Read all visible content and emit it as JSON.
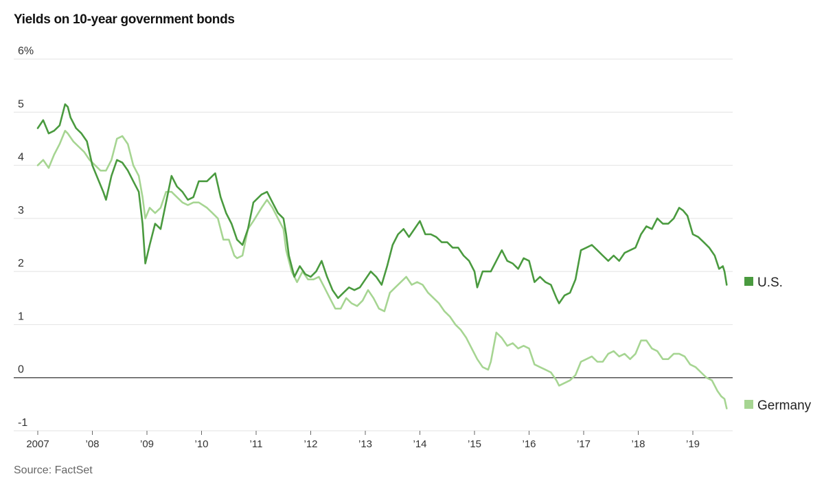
{
  "title": "Yields on 10-year government bonds",
  "source": "Source: FactSet",
  "colors": {
    "us": "#4a9a3f",
    "germany": "#a6d592",
    "grid": "#e2e2e2",
    "zero_line": "#333333"
  },
  "chart_data": {
    "type": "line",
    "title": "Yields on 10-year government bonds",
    "xlabel": "",
    "ylabel": "",
    "unit": "%",
    "ylim": [
      -1,
      6
    ],
    "xlim": [
      2007.0,
      2019.75
    ],
    "yticks": [
      {
        "value": 6,
        "label": "6%"
      },
      {
        "value": 5,
        "label": "5"
      },
      {
        "value": 4,
        "label": "4"
      },
      {
        "value": 3,
        "label": "3"
      },
      {
        "value": 2,
        "label": "2"
      },
      {
        "value": 1,
        "label": "1"
      },
      {
        "value": 0,
        "label": "0"
      },
      {
        "value": -1,
        "label": "-1"
      }
    ],
    "xticks": [
      {
        "value": 2007,
        "label": "2007"
      },
      {
        "value": 2008,
        "label": "’08"
      },
      {
        "value": 2009,
        "label": "’09"
      },
      {
        "value": 2010,
        "label": "’10"
      },
      {
        "value": 2011,
        "label": "’11"
      },
      {
        "value": 2012,
        "label": "’12"
      },
      {
        "value": 2013,
        "label": "’13"
      },
      {
        "value": 2014,
        "label": "’14"
      },
      {
        "value": 2015,
        "label": "’15"
      },
      {
        "value": 2016,
        "label": "’16"
      },
      {
        "value": 2017,
        "label": "’17"
      },
      {
        "value": 2018,
        "label": "’18"
      },
      {
        "value": 2019,
        "label": "’19"
      }
    ],
    "grid": true,
    "legend": "right, at line ends",
    "series": [
      {
        "name": "U.S.",
        "color": "#4a9a3f",
        "points": [
          [
            2007.0,
            4.7
          ],
          [
            2007.1,
            4.85
          ],
          [
            2007.2,
            4.6
          ],
          [
            2007.3,
            4.65
          ],
          [
            2007.4,
            4.75
          ],
          [
            2007.5,
            5.15
          ],
          [
            2007.55,
            5.1
          ],
          [
            2007.6,
            4.9
          ],
          [
            2007.7,
            4.7
          ],
          [
            2007.8,
            4.6
          ],
          [
            2007.9,
            4.45
          ],
          [
            2008.0,
            4.0
          ],
          [
            2008.1,
            3.75
          ],
          [
            2008.2,
            3.5
          ],
          [
            2008.25,
            3.35
          ],
          [
            2008.35,
            3.8
          ],
          [
            2008.45,
            4.1
          ],
          [
            2008.55,
            4.05
          ],
          [
            2008.65,
            3.9
          ],
          [
            2008.75,
            3.7
          ],
          [
            2008.85,
            3.5
          ],
          [
            2008.92,
            2.9
          ],
          [
            2008.97,
            2.15
          ],
          [
            2009.05,
            2.5
          ],
          [
            2009.15,
            2.9
          ],
          [
            2009.25,
            2.8
          ],
          [
            2009.35,
            3.3
          ],
          [
            2009.45,
            3.8
          ],
          [
            2009.55,
            3.6
          ],
          [
            2009.65,
            3.5
          ],
          [
            2009.75,
            3.35
          ],
          [
            2009.85,
            3.4
          ],
          [
            2009.95,
            3.7
          ],
          [
            2010.1,
            3.7
          ],
          [
            2010.25,
            3.85
          ],
          [
            2010.35,
            3.4
          ],
          [
            2010.45,
            3.1
          ],
          [
            2010.55,
            2.9
          ],
          [
            2010.65,
            2.6
          ],
          [
            2010.75,
            2.5
          ],
          [
            2010.85,
            2.8
          ],
          [
            2010.95,
            3.3
          ],
          [
            2011.1,
            3.45
          ],
          [
            2011.2,
            3.5
          ],
          [
            2011.3,
            3.3
          ],
          [
            2011.4,
            3.1
          ],
          [
            2011.5,
            3.0
          ],
          [
            2011.55,
            2.7
          ],
          [
            2011.6,
            2.3
          ],
          [
            2011.7,
            1.9
          ],
          [
            2011.8,
            2.1
          ],
          [
            2011.9,
            1.95
          ],
          [
            2012.0,
            1.9
          ],
          [
            2012.1,
            2.0
          ],
          [
            2012.2,
            2.2
          ],
          [
            2012.3,
            1.9
          ],
          [
            2012.4,
            1.65
          ],
          [
            2012.5,
            1.5
          ],
          [
            2012.6,
            1.6
          ],
          [
            2012.7,
            1.7
          ],
          [
            2012.8,
            1.65
          ],
          [
            2012.9,
            1.7
          ],
          [
            2013.0,
            1.85
          ],
          [
            2013.1,
            2.0
          ],
          [
            2013.2,
            1.9
          ],
          [
            2013.3,
            1.75
          ],
          [
            2013.4,
            2.1
          ],
          [
            2013.5,
            2.5
          ],
          [
            2013.6,
            2.7
          ],
          [
            2013.7,
            2.8
          ],
          [
            2013.8,
            2.65
          ],
          [
            2013.9,
            2.8
          ],
          [
            2014.0,
            2.95
          ],
          [
            2014.1,
            2.7
          ],
          [
            2014.2,
            2.7
          ],
          [
            2014.3,
            2.65
          ],
          [
            2014.4,
            2.55
          ],
          [
            2014.5,
            2.55
          ],
          [
            2014.6,
            2.45
          ],
          [
            2014.7,
            2.45
          ],
          [
            2014.8,
            2.3
          ],
          [
            2014.9,
            2.2
          ],
          [
            2015.0,
            2.0
          ],
          [
            2015.05,
            1.7
          ],
          [
            2015.15,
            2.0
          ],
          [
            2015.3,
            2.0
          ],
          [
            2015.4,
            2.2
          ],
          [
            2015.5,
            2.4
          ],
          [
            2015.6,
            2.2
          ],
          [
            2015.7,
            2.15
          ],
          [
            2015.8,
            2.05
          ],
          [
            2015.9,
            2.25
          ],
          [
            2016.0,
            2.2
          ],
          [
            2016.1,
            1.8
          ],
          [
            2016.2,
            1.9
          ],
          [
            2016.3,
            1.8
          ],
          [
            2016.4,
            1.75
          ],
          [
            2016.5,
            1.5
          ],
          [
            2016.55,
            1.4
          ],
          [
            2016.65,
            1.55
          ],
          [
            2016.75,
            1.6
          ],
          [
            2016.85,
            1.85
          ],
          [
            2016.95,
            2.4
          ],
          [
            2017.05,
            2.45
          ],
          [
            2017.15,
            2.5
          ],
          [
            2017.25,
            2.4
          ],
          [
            2017.35,
            2.3
          ],
          [
            2017.45,
            2.2
          ],
          [
            2017.55,
            2.3
          ],
          [
            2017.65,
            2.2
          ],
          [
            2017.75,
            2.35
          ],
          [
            2017.85,
            2.4
          ],
          [
            2017.95,
            2.45
          ],
          [
            2018.05,
            2.7
          ],
          [
            2018.15,
            2.85
          ],
          [
            2018.25,
            2.8
          ],
          [
            2018.35,
            3.0
          ],
          [
            2018.45,
            2.9
          ],
          [
            2018.55,
            2.9
          ],
          [
            2018.65,
            3.0
          ],
          [
            2018.75,
            3.2
          ],
          [
            2018.82,
            3.15
          ],
          [
            2018.9,
            3.05
          ],
          [
            2019.0,
            2.7
          ],
          [
            2019.1,
            2.65
          ],
          [
            2019.2,
            2.55
          ],
          [
            2019.3,
            2.45
          ],
          [
            2019.4,
            2.3
          ],
          [
            2019.48,
            2.05
          ],
          [
            2019.55,
            2.1
          ],
          [
            2019.58,
            2.0
          ],
          [
            2019.62,
            1.75
          ]
        ]
      },
      {
        "name": "Germany",
        "color": "#a6d592",
        "points": [
          [
            2007.0,
            4.0
          ],
          [
            2007.1,
            4.1
          ],
          [
            2007.2,
            3.95
          ],
          [
            2007.3,
            4.2
          ],
          [
            2007.4,
            4.4
          ],
          [
            2007.5,
            4.65
          ],
          [
            2007.55,
            4.6
          ],
          [
            2007.65,
            4.45
          ],
          [
            2007.75,
            4.35
          ],
          [
            2007.85,
            4.25
          ],
          [
            2007.95,
            4.1
          ],
          [
            2008.05,
            4.0
          ],
          [
            2008.15,
            3.9
          ],
          [
            2008.25,
            3.9
          ],
          [
            2008.35,
            4.1
          ],
          [
            2008.45,
            4.5
          ],
          [
            2008.55,
            4.55
          ],
          [
            2008.65,
            4.4
          ],
          [
            2008.75,
            4.0
          ],
          [
            2008.85,
            3.8
          ],
          [
            2008.92,
            3.4
          ],
          [
            2008.97,
            3.0
          ],
          [
            2009.05,
            3.2
          ],
          [
            2009.15,
            3.1
          ],
          [
            2009.25,
            3.2
          ],
          [
            2009.35,
            3.5
          ],
          [
            2009.45,
            3.5
          ],
          [
            2009.55,
            3.4
          ],
          [
            2009.65,
            3.3
          ],
          [
            2009.75,
            3.25
          ],
          [
            2009.85,
            3.3
          ],
          [
            2009.95,
            3.3
          ],
          [
            2010.1,
            3.2
          ],
          [
            2010.2,
            3.1
          ],
          [
            2010.3,
            3.0
          ],
          [
            2010.4,
            2.6
          ],
          [
            2010.5,
            2.6
          ],
          [
            2010.6,
            2.3
          ],
          [
            2010.65,
            2.25
          ],
          [
            2010.75,
            2.3
          ],
          [
            2010.85,
            2.8
          ],
          [
            2010.95,
            2.95
          ],
          [
            2011.1,
            3.2
          ],
          [
            2011.2,
            3.35
          ],
          [
            2011.3,
            3.2
          ],
          [
            2011.4,
            3.0
          ],
          [
            2011.5,
            2.8
          ],
          [
            2011.55,
            2.4
          ],
          [
            2011.65,
            2.0
          ],
          [
            2011.75,
            1.8
          ],
          [
            2011.85,
            2.0
          ],
          [
            2011.95,
            1.85
          ],
          [
            2012.05,
            1.85
          ],
          [
            2012.15,
            1.9
          ],
          [
            2012.25,
            1.7
          ],
          [
            2012.35,
            1.5
          ],
          [
            2012.45,
            1.3
          ],
          [
            2012.55,
            1.3
          ],
          [
            2012.65,
            1.5
          ],
          [
            2012.75,
            1.4
          ],
          [
            2012.85,
            1.35
          ],
          [
            2012.95,
            1.45
          ],
          [
            2013.05,
            1.65
          ],
          [
            2013.15,
            1.5
          ],
          [
            2013.25,
            1.3
          ],
          [
            2013.35,
            1.25
          ],
          [
            2013.45,
            1.6
          ],
          [
            2013.55,
            1.7
          ],
          [
            2013.65,
            1.8
          ],
          [
            2013.75,
            1.9
          ],
          [
            2013.85,
            1.75
          ],
          [
            2013.95,
            1.8
          ],
          [
            2014.05,
            1.75
          ],
          [
            2014.15,
            1.6
          ],
          [
            2014.25,
            1.5
          ],
          [
            2014.35,
            1.4
          ],
          [
            2014.45,
            1.25
          ],
          [
            2014.55,
            1.15
          ],
          [
            2014.65,
            1.0
          ],
          [
            2014.75,
            0.9
          ],
          [
            2014.85,
            0.75
          ],
          [
            2014.95,
            0.55
          ],
          [
            2015.05,
            0.35
          ],
          [
            2015.15,
            0.2
          ],
          [
            2015.25,
            0.15
          ],
          [
            2015.3,
            0.3
          ],
          [
            2015.4,
            0.85
          ],
          [
            2015.5,
            0.75
          ],
          [
            2015.6,
            0.6
          ],
          [
            2015.7,
            0.65
          ],
          [
            2015.8,
            0.55
          ],
          [
            2015.9,
            0.6
          ],
          [
            2016.0,
            0.55
          ],
          [
            2016.1,
            0.25
          ],
          [
            2016.2,
            0.2
          ],
          [
            2016.3,
            0.15
          ],
          [
            2016.4,
            0.1
          ],
          [
            2016.5,
            -0.05
          ],
          [
            2016.55,
            -0.15
          ],
          [
            2016.65,
            -0.1
          ],
          [
            2016.75,
            -0.05
          ],
          [
            2016.85,
            0.05
          ],
          [
            2016.95,
            0.3
          ],
          [
            2017.05,
            0.35
          ],
          [
            2017.15,
            0.4
          ],
          [
            2017.25,
            0.3
          ],
          [
            2017.35,
            0.3
          ],
          [
            2017.45,
            0.45
          ],
          [
            2017.55,
            0.5
          ],
          [
            2017.65,
            0.4
          ],
          [
            2017.75,
            0.45
          ],
          [
            2017.85,
            0.35
          ],
          [
            2017.95,
            0.45
          ],
          [
            2018.05,
            0.7
          ],
          [
            2018.15,
            0.7
          ],
          [
            2018.25,
            0.55
          ],
          [
            2018.35,
            0.5
          ],
          [
            2018.45,
            0.35
          ],
          [
            2018.55,
            0.35
          ],
          [
            2018.65,
            0.45
          ],
          [
            2018.75,
            0.45
          ],
          [
            2018.85,
            0.4
          ],
          [
            2018.95,
            0.25
          ],
          [
            2019.05,
            0.2
          ],
          [
            2019.15,
            0.1
          ],
          [
            2019.25,
            0.0
          ],
          [
            2019.35,
            -0.05
          ],
          [
            2019.45,
            -0.25
          ],
          [
            2019.52,
            -0.35
          ],
          [
            2019.58,
            -0.4
          ],
          [
            2019.62,
            -0.58
          ]
        ]
      }
    ]
  }
}
